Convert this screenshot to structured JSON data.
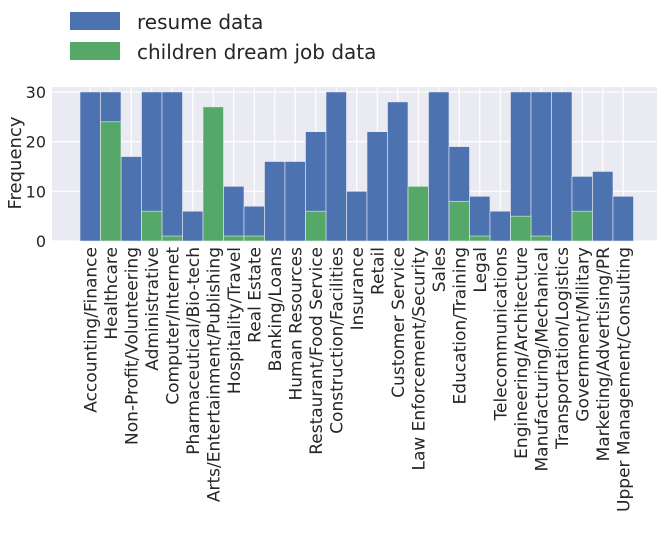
{
  "chart_data": {
    "type": "bar",
    "title": "",
    "xlabel": "",
    "ylabel": "Frequency",
    "ylim": [
      0,
      31
    ],
    "yticks": [
      0,
      10,
      20,
      30
    ],
    "grid": true,
    "legend_placement": "top-left",
    "colors": {
      "plot_bg": "#EAEAF2",
      "grid": "#FFFFFF",
      "text": "#262626"
    },
    "categories": [
      "Accounting/Finance",
      "Healthcare",
      "Non-Profit/Volunteering",
      "Administrative",
      "Computer/Internet",
      "Pharmaceutical/Bio-tech",
      "Arts/Entertainment/Publishing",
      "Hospitality/Travel",
      "Real Estate",
      "Banking/Loans",
      "Human Resources",
      "Restaurant/Food Service",
      "Construction/Facilities",
      "Insurance",
      "Retail",
      "Customer Service",
      "Law Enforcement/Security",
      "Sales",
      "Education/Training",
      "Legal",
      "Telecommunications",
      "Engineering/Architecture",
      "Manufacturing/Mechanical",
      "Transportation/Logistics",
      "Government/Military",
      "Marketing/Advertising/PR",
      "Upper Management/Consulting"
    ],
    "series": [
      {
        "name": "resume data",
        "color": "#4C72B0",
        "values": [
          30,
          30,
          17,
          30,
          30,
          6,
          0,
          11,
          7,
          16,
          16,
          22,
          30,
          10,
          22,
          28,
          0,
          30,
          19,
          9,
          6,
          30,
          30,
          30,
          13,
          14,
          9
        ]
      },
      {
        "name": "children dream job data",
        "color": "#55A868",
        "values": [
          0,
          24,
          0,
          6,
          1,
          0,
          27,
          1,
          1,
          0,
          0,
          6,
          0,
          0,
          0,
          0,
          11,
          0,
          8,
          1,
          0,
          5,
          1,
          0,
          6,
          0,
          0
        ]
      }
    ]
  }
}
